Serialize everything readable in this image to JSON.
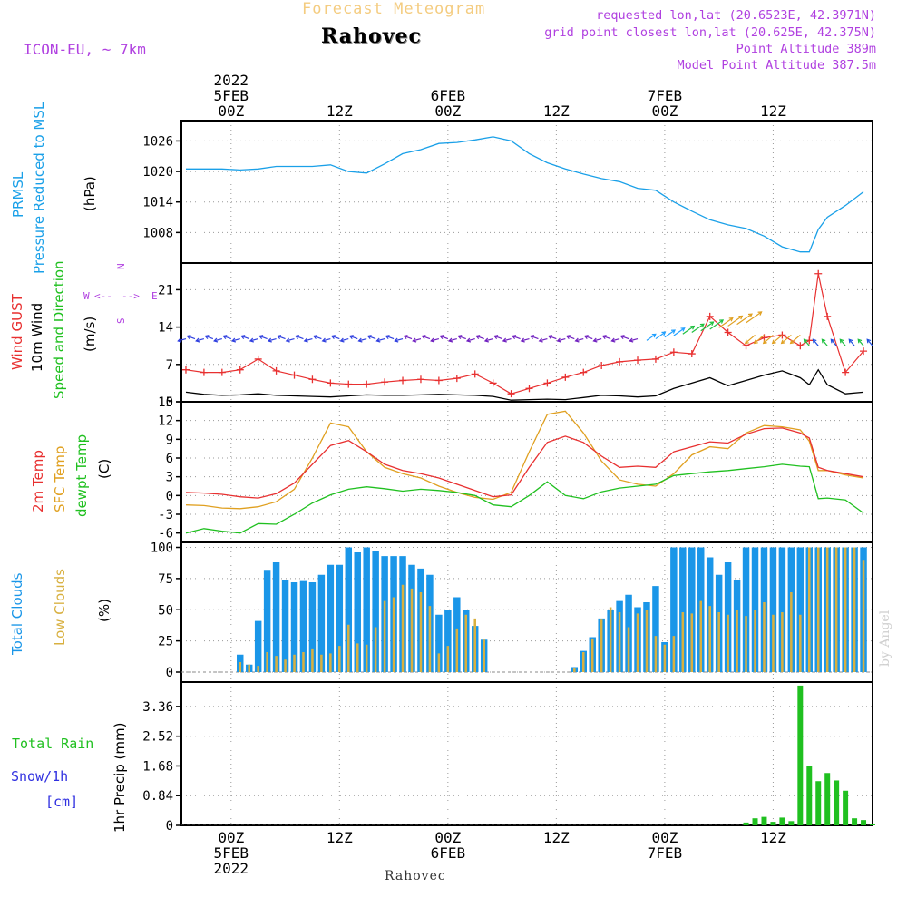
{
  "header": {
    "title_top": "Forecast Meteogram",
    "location": "Rahovec",
    "model": "ICON-EU, ~ 7km",
    "requested": "requested lon,lat (20.6523E, 42.3971N)",
    "gridpoint": "grid point closest lon,lat (20.625E, 42.375N)",
    "point_alt": "Point Altitude 389m",
    "model_alt": "Model Point Altitude 387.5m",
    "footer_location": "Rahovec",
    "credit": "by Angel"
  },
  "colors": {
    "pressure": "#1aa0e8",
    "gust": "#e83030",
    "wind10": "#000000",
    "dir": "#20c020",
    "temp2m": "#e83030",
    "sfc": "#e0a020",
    "dewpt": "#20c020",
    "total_cloud": "#1a96e8",
    "low_cloud": "#d8b040",
    "rain": "#20c020",
    "snow": "#3030e0",
    "compass": "#b040e0"
  },
  "time_axis": {
    "top": [
      {
        "t": 0,
        "lines": [
          "2022",
          "5FEB",
          "00Z"
        ]
      },
      {
        "t": 12,
        "lines": [
          "12Z"
        ]
      },
      {
        "t": 24,
        "lines": [
          "6FEB",
          "00Z"
        ]
      },
      {
        "t": 36,
        "lines": [
          "12Z"
        ]
      },
      {
        "t": 48,
        "lines": [
          "7FEB",
          "00Z"
        ]
      },
      {
        "t": 60,
        "lines": [
          "12Z"
        ]
      }
    ],
    "bottom": [
      {
        "t": 0,
        "lines": [
          "00Z",
          "5FEB",
          "2022"
        ]
      },
      {
        "t": 12,
        "lines": [
          "12Z"
        ]
      },
      {
        "t": 24,
        "lines": [
          "00Z",
          "6FEB"
        ]
      },
      {
        "t": 36,
        "lines": [
          "12Z"
        ]
      },
      {
        "t": 48,
        "lines": [
          "00Z",
          "7FEB"
        ]
      },
      {
        "t": 60,
        "lines": [
          "12Z"
        ]
      }
    ]
  },
  "chart_data": [
    {
      "type": "line",
      "name": "pressure",
      "labels": [
        "PRMSL",
        "Pressure Reduced to MSL"
      ],
      "ylabel": "(hPa)",
      "xlim": [
        -5.5,
        71
      ],
      "ylim": [
        1002,
        1030
      ],
      "yticks": [
        1008,
        1014,
        1020,
        1026
      ],
      "x": [
        -5,
        -3,
        -1,
        1,
        3,
        5,
        7,
        9,
        11,
        13,
        15,
        17,
        19,
        21,
        23,
        25,
        27,
        29,
        31,
        33,
        35,
        37,
        39,
        41,
        43,
        45,
        47,
        49,
        51,
        53,
        55,
        57,
        59,
        61,
        63,
        64,
        65,
        66,
        68,
        70
      ],
      "series": [
        {
          "name": "PRMSL",
          "values": [
            1020.5,
            1020.5,
            1020.5,
            1020.3,
            1020.5,
            1021,
            1021,
            1021,
            1021.3,
            1020,
            1019.7,
            1021.5,
            1023.5,
            1024.3,
            1025.5,
            1025.7,
            1026.2,
            1026.8,
            1026,
            1023.5,
            1021.7,
            1020.5,
            1019.5,
            1018.6,
            1018,
            1016.7,
            1016.3,
            1014,
            1012.2,
            1010.5,
            1009.5,
            1008.8,
            1007.3,
            1005.2,
            1004.2,
            1004.2,
            1008.6,
            1011,
            1013.3,
            1016
          ]
        }
      ]
    },
    {
      "type": "line",
      "name": "wind",
      "labels": [
        "Wind GUST",
        "10m Wind",
        "Speed and Direction"
      ],
      "ylabel": "(m/s)",
      "compass": {
        "n": "N",
        "s": "S",
        "e": "E",
        "w": "W"
      },
      "xlim": [
        -5.5,
        71
      ],
      "ylim": [
        0,
        26
      ],
      "yticks": [
        0,
        7,
        14,
        21
      ],
      "x": [
        -5,
        -3,
        -1,
        1,
        3,
        5,
        7,
        9,
        11,
        13,
        15,
        17,
        19,
        21,
        23,
        25,
        27,
        29,
        31,
        33,
        35,
        37,
        39,
        41,
        43,
        45,
        47,
        49,
        51,
        53,
        55,
        57,
        59,
        61,
        63,
        64,
        65,
        66,
        68,
        70
      ],
      "series": [
        {
          "name": "Wind GUST",
          "values": [
            6,
            5.5,
            5.5,
            6,
            8,
            5.8,
            5,
            4.2,
            3.5,
            3.3,
            3.3,
            3.7,
            4,
            4.2,
            4,
            4.4,
            5.2,
            3.5,
            1.5,
            2.5,
            3.5,
            4.6,
            5.5,
            6.8,
            7.5,
            7.8,
            8,
            9.3,
            9,
            16,
            13,
            10.5,
            12,
            12.5,
            10.5,
            11.5,
            24,
            16,
            5.5,
            9.5
          ]
        },
        {
          "name": "10m Wind",
          "values": [
            1.8,
            1.4,
            1.2,
            1.3,
            1.5,
            1.2,
            1.1,
            1,
            0.9,
            1.1,
            1.3,
            1.2,
            1.2,
            1.3,
            1.4,
            1.3,
            1.2,
            1,
            0.3,
            0.4,
            0.5,
            0.4,
            0.8,
            1.2,
            1.1,
            0.9,
            1.1,
            2.5,
            3.5,
            4.5,
            3,
            4,
            5,
            5.8,
            4.5,
            3.2,
            6,
            3.2,
            1.5,
            1.8
          ]
        }
      ]
    },
    {
      "type": "line",
      "name": "temperature",
      "labels": [
        "2m Temp",
        "SFC Temp",
        "dewpt Temp"
      ],
      "ylabel": "(C)",
      "xlim": [
        -5.5,
        71
      ],
      "ylim": [
        -7.5,
        15
      ],
      "yticks": [
        -6,
        -3,
        0,
        3,
        6,
        9,
        12,
        15
      ],
      "x": [
        -5,
        -3,
        -1,
        1,
        3,
        5,
        7,
        9,
        11,
        13,
        15,
        17,
        19,
        21,
        23,
        25,
        27,
        29,
        31,
        33,
        35,
        37,
        39,
        41,
        43,
        45,
        47,
        49,
        51,
        53,
        55,
        57,
        59,
        61,
        63,
        64,
        65,
        66,
        68,
        70
      ],
      "series": [
        {
          "name": "2m Temp",
          "values": [
            0.5,
            0.4,
            0.2,
            -0.2,
            -0.4,
            0.3,
            2,
            5,
            8,
            8.8,
            7,
            5,
            4,
            3.5,
            2.8,
            1.8,
            0.8,
            -0.2,
            0.1,
            4.5,
            8.5,
            9.5,
            8.5,
            6.3,
            4.5,
            4.7,
            4.5,
            7,
            7.8,
            8.6,
            8.4,
            9.8,
            10.7,
            10.8,
            10,
            9.2,
            4.5,
            4,
            3.5,
            3
          ]
        },
        {
          "name": "SFC Temp",
          "values": [
            -1.5,
            -1.6,
            -2,
            -2.1,
            -1.8,
            -1,
            1,
            6,
            11.6,
            11,
            7,
            4.5,
            3.5,
            2.8,
            1.5,
            0.5,
            -0.3,
            -0.6,
            0.5,
            7,
            13,
            13.5,
            10,
            5.5,
            2.5,
            1.8,
            1.5,
            3.5,
            6.5,
            7.8,
            7.5,
            10,
            11.2,
            11,
            10.5,
            8.7,
            4,
            4,
            3.3,
            2.8
          ]
        },
        {
          "name": "dewpt Temp",
          "values": [
            -6,
            -5.3,
            -5.7,
            -6,
            -4.5,
            -4.6,
            -3,
            -1.2,
            0.1,
            1,
            1.4,
            1.1,
            0.7,
            1,
            0.8,
            0.5,
            0,
            -1.5,
            -1.8,
            0,
            2.2,
            0,
            -0.5,
            0.6,
            1.2,
            1.5,
            1.8,
            3.2,
            3.5,
            3.8,
            4,
            4.3,
            4.6,
            5,
            4.7,
            4.6,
            -0.5,
            -0.4,
            -0.7,
            -2.8
          ]
        }
      ]
    },
    {
      "type": "bar",
      "name": "clouds",
      "labels": [
        "Total Clouds",
        "Low Clouds"
      ],
      "ylabel": "(%)",
      "xlim": [
        -5.5,
        71
      ],
      "ylim": [
        -8,
        104
      ],
      "yticks": [
        0,
        25,
        50,
        75,
        100
      ],
      "x": [
        1,
        2,
        3,
        4,
        5,
        6,
        7,
        8,
        9,
        10,
        11,
        12,
        13,
        14,
        15,
        16,
        17,
        18,
        19,
        20,
        21,
        22,
        23,
        24,
        25,
        26,
        27,
        28,
        29,
        30,
        38,
        39,
        40,
        41,
        42,
        43,
        44,
        45,
        46,
        47,
        48,
        49,
        50,
        51,
        52,
        53,
        54,
        55,
        56,
        57,
        58,
        59,
        60,
        61,
        62,
        63,
        64,
        65,
        66,
        67,
        68,
        69,
        70
      ],
      "series": [
        {
          "name": "Total Clouds",
          "values": [
            14,
            6,
            41,
            82,
            88,
            74,
            72,
            73,
            72,
            78,
            86,
            86,
            100,
            96,
            100,
            97,
            93,
            93,
            93,
            86,
            83,
            78,
            46,
            50,
            60,
            50,
            37,
            26,
            0,
            0,
            4,
            17,
            28,
            43,
            50,
            57,
            62,
            52,
            56,
            69,
            24,
            100,
            100,
            100,
            100,
            92,
            78,
            88,
            74,
            100,
            100,
            100,
            100,
            100,
            100,
            100,
            100,
            100,
            100,
            100,
            100,
            100,
            100
          ]
        },
        {
          "name": "Low Clouds",
          "values": [
            8,
            6,
            5,
            16,
            13,
            10,
            14,
            16,
            19,
            14,
            15,
            21,
            38,
            23,
            22,
            36,
            57,
            60,
            70,
            67,
            64,
            53,
            15,
            21,
            35,
            46,
            43,
            26,
            0,
            0,
            3,
            16,
            27,
            42,
            52,
            48,
            36,
            47,
            50,
            29,
            22,
            29,
            48,
            47,
            57,
            53,
            48,
            46,
            50,
            45,
            50,
            56,
            46,
            48,
            64,
            46,
            100,
            100,
            100,
            100,
            100,
            100,
            90
          ]
        }
      ]
    },
    {
      "type": "bar",
      "name": "precip",
      "labels": [
        "Total Rain",
        "Snow/1h",
        "[cm]"
      ],
      "ylabel": "1hr Precip (mm)",
      "xlim": [
        -5.5,
        71
      ],
      "ylim": [
        0,
        4.05
      ],
      "yticks": [
        0,
        0.84,
        1.68,
        2.52,
        3.36
      ],
      "ytick_labels": [
        "0",
        "0.84",
        "1.68",
        "2.52",
        "3.36"
      ],
      "x": [
        57,
        58,
        59,
        60,
        61,
        62,
        63,
        64,
        65,
        66,
        67,
        68,
        69,
        70,
        71
      ],
      "series": [
        {
          "name": "Total Rain",
          "values": [
            0.08,
            0.2,
            0.24,
            0.1,
            0.22,
            0.12,
            3.95,
            1.68,
            1.25,
            1.48,
            1.27,
            0.98,
            0.2,
            0.15,
            0.05
          ]
        }
      ]
    }
  ]
}
